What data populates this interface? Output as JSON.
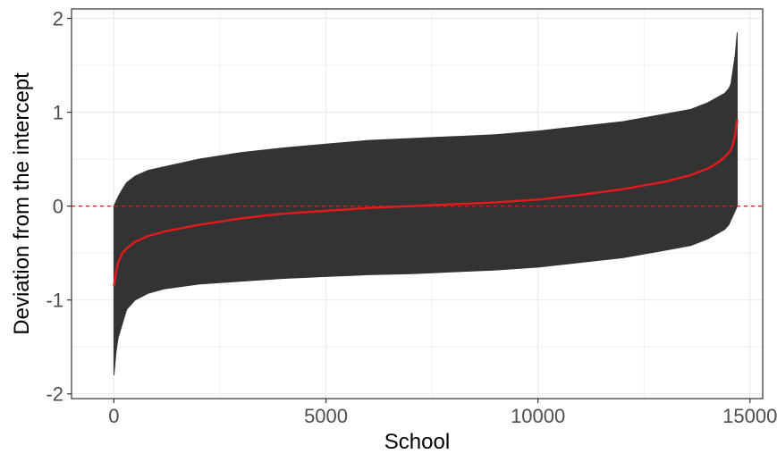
{
  "chart_data": {
    "type": "line",
    "xlabel": "School",
    "ylabel": "Deviation from the intercept",
    "xlim": [
      -1000,
      15300
    ],
    "ylim": [
      -2.05,
      2.1
    ],
    "x_ticks": [
      0,
      5000,
      10000,
      15000
    ],
    "x_tick_labels": [
      "0",
      "5000",
      "10000",
      "15000"
    ],
    "y_ticks": [
      -2,
      -1,
      0,
      1,
      2
    ],
    "y_tick_labels": [
      "-2",
      "-1",
      "0",
      "1",
      "2"
    ],
    "grid": true,
    "legend": "none",
    "reference_line": {
      "y": 0,
      "style": "dashed",
      "color": "#e41a1c"
    },
    "colors": {
      "band": "#333333",
      "estimate_line": "#e41a1c",
      "grid": "#ebebeb",
      "panel_border": "#333333"
    },
    "series": [
      {
        "x": [
          0,
          50,
          100,
          200,
          300,
          500,
          800,
          1200,
          2000,
          3000,
          4000,
          5000,
          6000,
          7000,
          7500,
          8000,
          9000,
          10000,
          11000,
          12000,
          13000,
          13600,
          14000,
          14200,
          14400,
          14500,
          14550,
          14600,
          14650,
          14700
        ],
        "values": [
          -0.85,
          -0.7,
          -0.6,
          -0.5,
          -0.45,
          -0.38,
          -0.32,
          -0.27,
          -0.2,
          -0.13,
          -0.08,
          -0.05,
          -0.02,
          0.0,
          0.01,
          0.02,
          0.04,
          0.07,
          0.12,
          0.18,
          0.26,
          0.33,
          0.4,
          0.45,
          0.52,
          0.57,
          0.6,
          0.66,
          0.76,
          0.92
        ],
        "lower": [
          -1.8,
          -1.55,
          -1.4,
          -1.25,
          -1.1,
          -1.0,
          -0.93,
          -0.88,
          -0.83,
          -0.8,
          -0.77,
          -0.75,
          -0.73,
          -0.72,
          -0.71,
          -0.7,
          -0.68,
          -0.65,
          -0.6,
          -0.55,
          -0.47,
          -0.42,
          -0.35,
          -0.3,
          -0.25,
          -0.2,
          -0.15,
          -0.1,
          -0.05,
          0.0
        ],
        "upper": [
          0.0,
          0.05,
          0.1,
          0.18,
          0.25,
          0.32,
          0.38,
          0.42,
          0.5,
          0.57,
          0.62,
          0.66,
          0.7,
          0.72,
          0.73,
          0.74,
          0.76,
          0.8,
          0.85,
          0.9,
          0.98,
          1.03,
          1.1,
          1.15,
          1.2,
          1.25,
          1.3,
          1.45,
          1.6,
          1.85
        ]
      }
    ]
  }
}
